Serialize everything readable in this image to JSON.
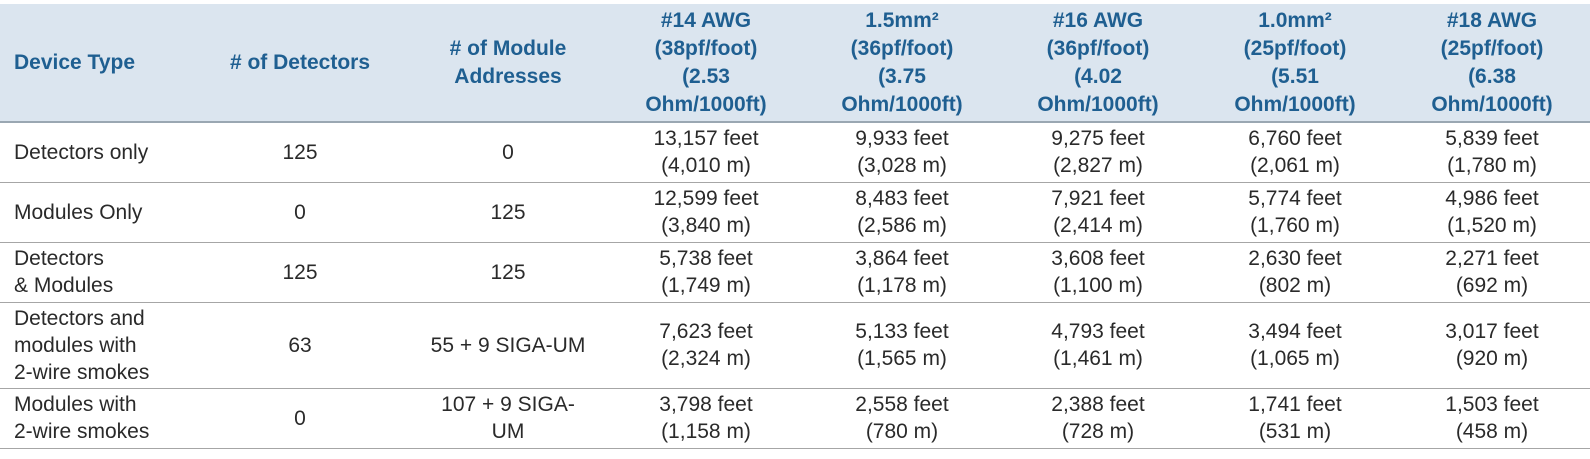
{
  "headers": {
    "device_type": "Device Type",
    "num_detectors": "# of Detectors",
    "num_module_addresses": [
      "# of Module",
      "Addresses"
    ],
    "awg14": [
      "#14 AWG",
      "(38pf/foot)",
      "(2.53",
      "Ohm/1000ft)"
    ],
    "mm15": [
      "1.5mm²",
      "(36pf/foot)",
      "(3.75",
      "Ohm/1000ft)"
    ],
    "awg16": [
      "#16 AWG",
      "(36pf/foot)",
      "(4.02",
      "Ohm/1000ft)"
    ],
    "mm10": [
      "1.0mm²",
      "(25pf/foot)",
      "(5.51",
      "Ohm/1000ft)"
    ],
    "awg18": [
      "#18 AWG",
      "(25pf/foot)",
      "(6.38",
      "Ohm/1000ft)"
    ]
  },
  "rows": [
    {
      "device_type": [
        "Detectors only"
      ],
      "detectors": "125",
      "module_addresses": [
        "0"
      ],
      "awg14": [
        "13,157 feet",
        "(4,010 m)"
      ],
      "mm15": [
        "9,933 feet",
        "(3,028 m)"
      ],
      "awg16": [
        "9,275 feet",
        "(2,827 m)"
      ],
      "mm10": [
        "6,760 feet",
        "(2,061 m)"
      ],
      "awg18": [
        "5,839 feet",
        "(1,780 m)"
      ]
    },
    {
      "device_type": [
        "Modules Only"
      ],
      "detectors": "0",
      "module_addresses": [
        "125"
      ],
      "awg14": [
        "12,599 feet",
        "(3,840 m)"
      ],
      "mm15": [
        "8,483 feet",
        "(2,586 m)"
      ],
      "awg16": [
        "7,921 feet",
        "(2,414 m)"
      ],
      "mm10": [
        "5,774 feet",
        "(1,760 m)"
      ],
      "awg18": [
        "4,986 feet",
        "(1,520 m)"
      ]
    },
    {
      "device_type": [
        "Detectors",
        "& Modules"
      ],
      "detectors": "125",
      "module_addresses": [
        "125"
      ],
      "awg14": [
        "5,738 feet",
        "(1,749 m)"
      ],
      "mm15": [
        "3,864 feet",
        "(1,178 m)"
      ],
      "awg16": [
        "3,608 feet",
        "(1,100 m)"
      ],
      "mm10": [
        "2,630 feet",
        "(802 m)"
      ],
      "awg18": [
        "2,271 feet",
        "(692 m)"
      ]
    },
    {
      "device_type": [
        "Detectors and",
        "modules with",
        "2-wire smokes"
      ],
      "detectors": "63",
      "module_addresses": [
        "55 + 9 SIGA-UM"
      ],
      "awg14": [
        "7,623 feet",
        "(2,324 m)"
      ],
      "mm15": [
        "5,133 feet",
        "(1,565 m)"
      ],
      "awg16": [
        "4,793 feet",
        "(1,461 m)"
      ],
      "mm10": [
        "3,494 feet",
        "(1,065 m)"
      ],
      "awg18": [
        "3,017 feet",
        "(920 m)"
      ]
    },
    {
      "device_type": [
        "Modules with",
        "2-wire smokes"
      ],
      "detectors": "0",
      "module_addresses": [
        "107 + 9 SIGA-",
        "UM"
      ],
      "awg14": [
        "3,798 feet",
        "(1,158 m)"
      ],
      "mm15": [
        "2,558 feet",
        "(780 m)"
      ],
      "awg16": [
        "2,388 feet",
        "(728 m)"
      ],
      "mm10": [
        "1,741 feet",
        "(531 m)"
      ],
      "awg18": [
        "1,503 feet",
        "(458 m)"
      ]
    }
  ]
}
